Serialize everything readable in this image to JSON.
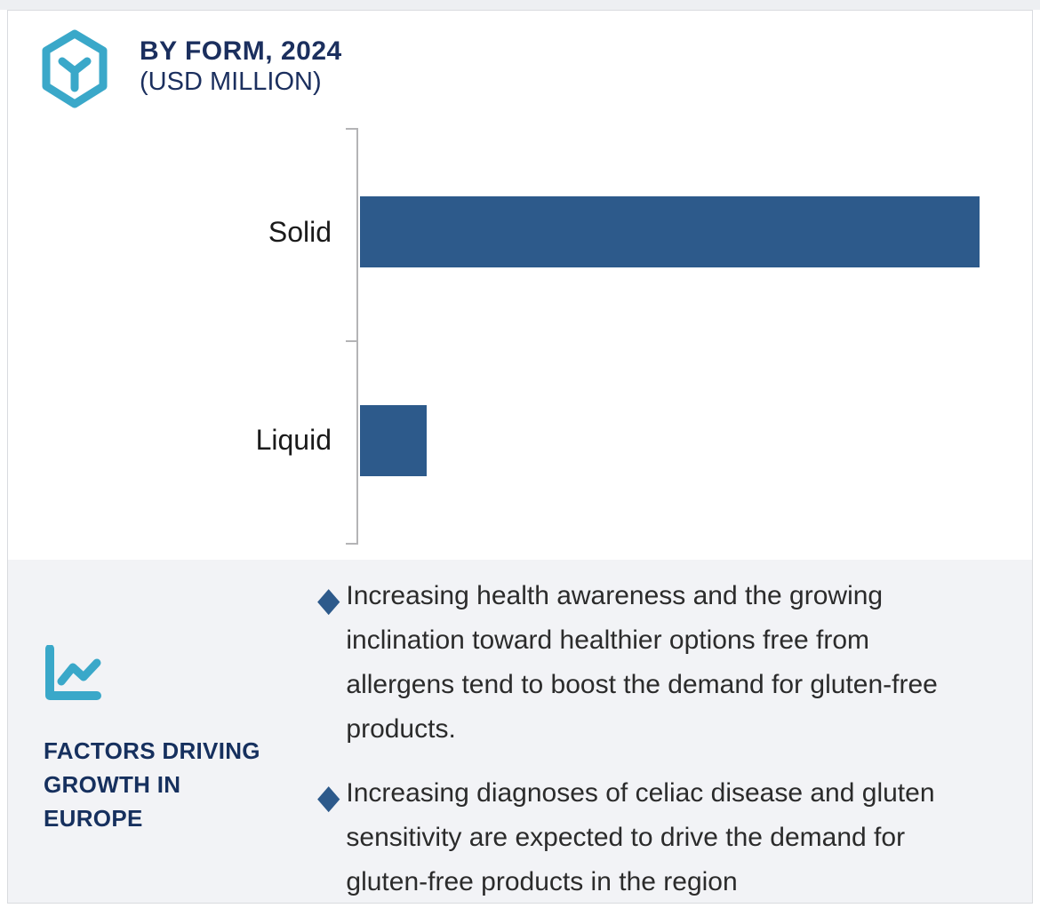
{
  "header": {
    "icon": "cube-hexagon-icon",
    "title": "BY FORM, 2024",
    "subtitle": "(USD MILLION)"
  },
  "chart_data": {
    "type": "bar",
    "orientation": "horizontal",
    "title": "BY FORM, 2024",
    "unit": "USD Million",
    "categories": [
      "Solid",
      "Liquid"
    ],
    "values_percent_of_max": [
      100,
      10.8
    ],
    "data_labels_shown": false,
    "value_axis_ticks_shown": false,
    "bar_color": "#2d5a8b",
    "axis_color": "#b4b4b6",
    "legend": "none"
  },
  "factors_panel": {
    "icon": "line-chart-icon",
    "heading": "FACTORS DRIVING GROWTH IN EUROPE",
    "bullet_glyph": "◆",
    "bullets": [
      "Increasing health awareness and the growing inclination toward healthier options free from allergens tend to boost the demand for gluten-free products.",
      "Increasing diagnoses of celiac disease and gluten sensitivity are expected to drive the demand for gluten-free products in the region"
    ]
  },
  "colors": {
    "teal": "#3aa8c9",
    "navy": "#1b2f5e",
    "bar_blue": "#2d5a8b",
    "panel_bg": "#f2f3f6"
  }
}
